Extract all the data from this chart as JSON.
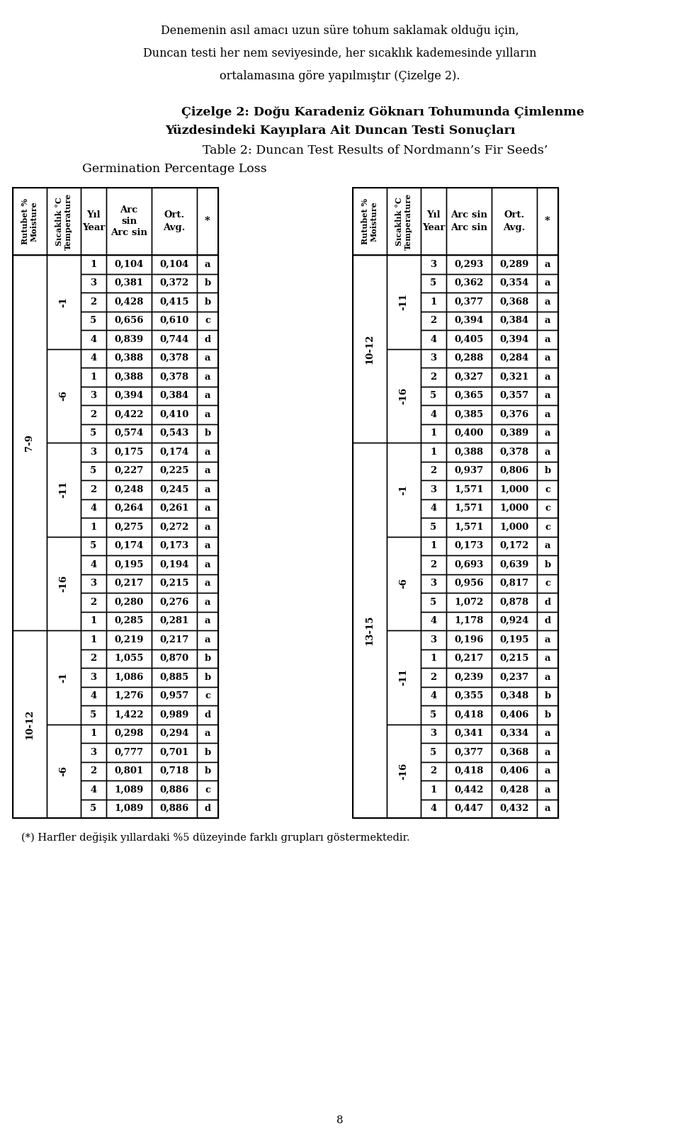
{
  "intro_lines": [
    "Denemenin asıl amacı uzun süre tohum saklamak olduğu için,",
    "Duncan testi her nem seviyesinde, her sıcaklık kademesinde yılların",
    "ortalamasına göre yapılmıştır (Çizelge 2)."
  ],
  "title_bold1": "Çizelge 2: Doğu Karadeniz Göknarı Tohumunda Çimlenme",
  "title_bold2": "Yüzdesindeki Kayıplara Ait Duncan Testi Sonuçları",
  "title_normal1": "Table 2: Duncan Test Results of Nordmann’s Fir Seeds’",
  "title_normal2": "Germination Percentage Loss",
  "footer": "(*) Harfler değişik yıllardaki %5 düzeyinde farklı grupları göstermektedir.",
  "page_number": "8",
  "left_table": {
    "moisture_groups": [
      {
        "moisture": "7-9",
        "temp_groups": [
          {
            "temp": "-1",
            "rows": [
              [
                1,
                "0,104",
                "0,104",
                "a"
              ],
              [
                3,
                "0,381",
                "0,372",
                "b"
              ],
              [
                2,
                "0,428",
                "0,415",
                "b"
              ],
              [
                5,
                "0,656",
                "0,610",
                "c"
              ],
              [
                4,
                "0,839",
                "0,744",
                "d"
              ]
            ]
          },
          {
            "temp": "-6",
            "rows": [
              [
                4,
                "0,388",
                "0,378",
                "a"
              ],
              [
                1,
                "0,388",
                "0,378",
                "a"
              ],
              [
                3,
                "0,394",
                "0,384",
                "a"
              ],
              [
                2,
                "0,422",
                "0,410",
                "a"
              ],
              [
                5,
                "0,574",
                "0,543",
                "b"
              ]
            ]
          },
          {
            "temp": "-11",
            "rows": [
              [
                3,
                "0,175",
                "0,174",
                "a"
              ],
              [
                5,
                "0,227",
                "0,225",
                "a"
              ],
              [
                2,
                "0,248",
                "0,245",
                "a"
              ],
              [
                4,
                "0,264",
                "0,261",
                "a"
              ],
              [
                1,
                "0,275",
                "0,272",
                "a"
              ]
            ]
          },
          {
            "temp": "-16",
            "rows": [
              [
                5,
                "0,174",
                "0,173",
                "a"
              ],
              [
                4,
                "0,195",
                "0,194",
                "a"
              ],
              [
                3,
                "0,217",
                "0,215",
                "a"
              ],
              [
                2,
                "0,280",
                "0,276",
                "a"
              ],
              [
                1,
                "0,285",
                "0,281",
                "a"
              ]
            ]
          }
        ]
      },
      {
        "moisture": "10-12",
        "temp_groups": [
          {
            "temp": "-1",
            "rows": [
              [
                1,
                "0,219",
                "0,217",
                "a"
              ],
              [
                2,
                "1,055",
                "0,870",
                "b"
              ],
              [
                3,
                "1,086",
                "0,885",
                "b"
              ],
              [
                4,
                "1,276",
                "0,957",
                "c"
              ],
              [
                5,
                "1,422",
                "0,989",
                "d"
              ]
            ]
          },
          {
            "temp": "-6",
            "rows": [
              [
                1,
                "0,298",
                "0,294",
                "a"
              ],
              [
                3,
                "0,777",
                "0,701",
                "b"
              ],
              [
                2,
                "0,801",
                "0,718",
                "b"
              ],
              [
                4,
                "1,089",
                "0,886",
                "c"
              ],
              [
                5,
                "1,089",
                "0,886",
                "d"
              ]
            ]
          }
        ]
      }
    ]
  },
  "right_table": {
    "moisture_groups": [
      {
        "moisture": "10-12",
        "temp_groups": [
          {
            "temp": "-11",
            "rows": [
              [
                3,
                "0,293",
                "0,289",
                "a"
              ],
              [
                5,
                "0,362",
                "0,354",
                "a"
              ],
              [
                1,
                "0,377",
                "0,368",
                "a"
              ],
              [
                2,
                "0,394",
                "0,384",
                "a"
              ],
              [
                4,
                "0,405",
                "0,394",
                "a"
              ]
            ]
          },
          {
            "temp": "-16",
            "rows": [
              [
                3,
                "0,288",
                "0,284",
                "a"
              ],
              [
                2,
                "0,327",
                "0,321",
                "a"
              ],
              [
                5,
                "0,365",
                "0,357",
                "a"
              ],
              [
                4,
                "0,385",
                "0,376",
                "a"
              ],
              [
                1,
                "0,400",
                "0,389",
                "a"
              ]
            ]
          }
        ]
      },
      {
        "moisture": "13-15",
        "temp_groups": [
          {
            "temp": "-1",
            "rows": [
              [
                1,
                "0,388",
                "0,378",
                "a"
              ],
              [
                2,
                "0,937",
                "0,806",
                "b"
              ],
              [
                3,
                "1,571",
                "1,000",
                "c"
              ],
              [
                4,
                "1,571",
                "1,000",
                "c"
              ],
              [
                5,
                "1,571",
                "1,000",
                "c"
              ]
            ]
          },
          {
            "temp": "-6",
            "rows": [
              [
                1,
                "0,173",
                "0,172",
                "a"
              ],
              [
                2,
                "0,693",
                "0,639",
                "b"
              ],
              [
                3,
                "0,956",
                "0,817",
                "c"
              ],
              [
                5,
                "1,072",
                "0,878",
                "d"
              ],
              [
                4,
                "1,178",
                "0,924",
                "d"
              ]
            ]
          },
          {
            "temp": "-11",
            "rows": [
              [
                3,
                "0,196",
                "0,195",
                "a"
              ],
              [
                1,
                "0,217",
                "0,215",
                "a"
              ],
              [
                2,
                "0,239",
                "0,237",
                "a"
              ],
              [
                4,
                "0,355",
                "0,348",
                "b"
              ],
              [
                5,
                "0,418",
                "0,406",
                "b"
              ]
            ]
          },
          {
            "temp": "-16",
            "rows": [
              [
                3,
                "0,341",
                "0,334",
                "a"
              ],
              [
                5,
                "0,377",
                "0,368",
                "a"
              ],
              [
                2,
                "0,418",
                "0,406",
                "a"
              ],
              [
                1,
                "0,442",
                "0,428",
                "a"
              ],
              [
                4,
                "0,447",
                "0,432",
                "a"
              ]
            ]
          }
        ]
      }
    ]
  }
}
